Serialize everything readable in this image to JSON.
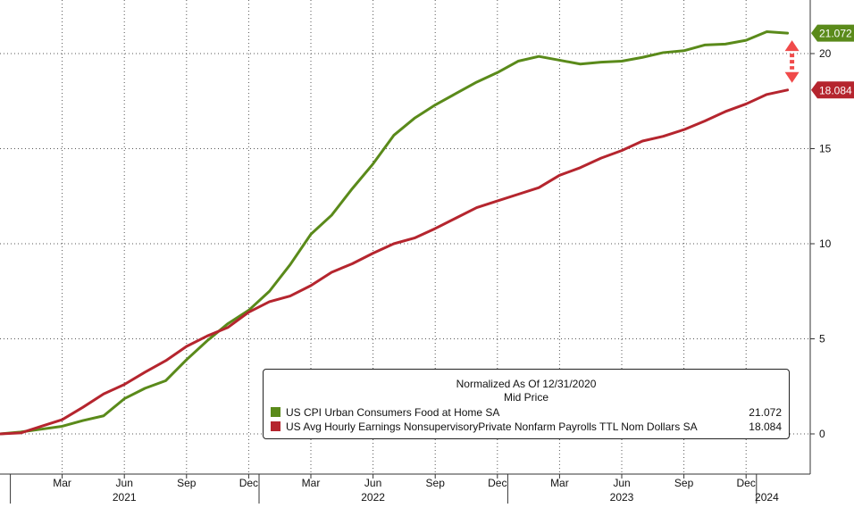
{
  "colors": {
    "cpi": "#5a8a1a",
    "wages": "#b5252e",
    "arrow": "#f04a4a",
    "grid": "#555555",
    "axis": "#333333"
  },
  "legend": {
    "title_line1": "Normalized As Of 12/31/2020",
    "title_line2": "Mid Price",
    "items": [
      {
        "label": "US CPI Urban Consumers Food at Home SA",
        "value": "21.072"
      },
      {
        "label": "US Avg Hourly Earnings NonsupervisoryPrivate Nonfarm Payrolls TTL Nom Dollars SA",
        "value": "18.084"
      }
    ]
  },
  "chart_data": {
    "type": "line",
    "title": "",
    "xlabel": "",
    "ylabel": "",
    "x": [
      "2020-12",
      "2021-01",
      "2021-02",
      "2021-03",
      "2021-04",
      "2021-05",
      "2021-06",
      "2021-07",
      "2021-08",
      "2021-09",
      "2021-10",
      "2021-11",
      "2021-12",
      "2022-01",
      "2022-02",
      "2022-03",
      "2022-04",
      "2022-05",
      "2022-06",
      "2022-07",
      "2022-08",
      "2022-09",
      "2022-10",
      "2022-11",
      "2022-12",
      "2023-01",
      "2023-02",
      "2023-03",
      "2023-04",
      "2023-05",
      "2023-06",
      "2023-07",
      "2023-08",
      "2023-09",
      "2023-10",
      "2023-11",
      "2023-12",
      "2024-01",
      "2024-02"
    ],
    "series": [
      {
        "name": "US CPI Urban Consumers Food at Home SA",
        "color_key": "cpi",
        "values": [
          0,
          0.1,
          0.25,
          0.4,
          0.7,
          0.95,
          1.85,
          2.4,
          2.8,
          3.9,
          4.9,
          5.8,
          6.5,
          7.5,
          8.9,
          10.5,
          11.5,
          12.9,
          14.2,
          15.7,
          16.6,
          17.3,
          17.9,
          18.5,
          19.0,
          19.6,
          19.85,
          19.65,
          19.45,
          19.55,
          19.6,
          19.8,
          20.05,
          20.15,
          20.45,
          20.5,
          20.7,
          21.15,
          21.072
        ]
      },
      {
        "name": "US Avg Hourly Earnings NonsupervisoryPrivate Nonfarm Payrolls TTL Nom Dollars SA",
        "color_key": "wages",
        "values": [
          0,
          0.05,
          0.4,
          0.75,
          1.4,
          2.1,
          2.6,
          3.25,
          3.85,
          4.6,
          5.15,
          5.6,
          6.4,
          6.95,
          7.25,
          7.8,
          8.5,
          8.95,
          9.5,
          10.0,
          10.3,
          10.8,
          11.35,
          11.9,
          12.25,
          12.6,
          12.95,
          13.6,
          14.0,
          14.5,
          14.9,
          15.4,
          15.65,
          16.0,
          16.45,
          16.95,
          17.35,
          17.85,
          18.084
        ]
      }
    ],
    "ylim": [
      -2,
      22.5
    ],
    "yticks": [
      0,
      5,
      10,
      15,
      20
    ],
    "ytick_labels": [
      "0",
      "5",
      "10",
      "15",
      "20"
    ],
    "month_ticks": [
      {
        "x": "2021-03",
        "label": "Mar"
      },
      {
        "x": "2021-06",
        "label": "Jun"
      },
      {
        "x": "2021-09",
        "label": "Sep"
      },
      {
        "x": "2021-12",
        "label": "Dec"
      },
      {
        "x": "2022-03",
        "label": "Mar"
      },
      {
        "x": "2022-06",
        "label": "Jun"
      },
      {
        "x": "2022-09",
        "label": "Sep"
      },
      {
        "x": "2022-12",
        "label": "Dec"
      },
      {
        "x": "2023-03",
        "label": "Mar"
      },
      {
        "x": "2023-06",
        "label": "Jun"
      },
      {
        "x": "2023-09",
        "label": "Sep"
      },
      {
        "x": "2023-12",
        "label": "Dec"
      }
    ],
    "year_labels": [
      {
        "year": "2021",
        "center": "2021-06"
      },
      {
        "year": "2022",
        "center": "2022-06"
      },
      {
        "year": "2023",
        "center": "2023-06"
      },
      {
        "year": "2024",
        "center": "2024-01"
      }
    ],
    "year_separators": [
      "2020-12",
      "2021-12",
      "2022-12",
      "2023-12"
    ],
    "end_labels": [
      {
        "series_index": 0,
        "text": "21.072"
      },
      {
        "series_index": 1,
        "text": "18.084"
      }
    ],
    "grid": true,
    "legend_position": "bottom-right",
    "annotation": "double-headed arrow between series end values"
  }
}
